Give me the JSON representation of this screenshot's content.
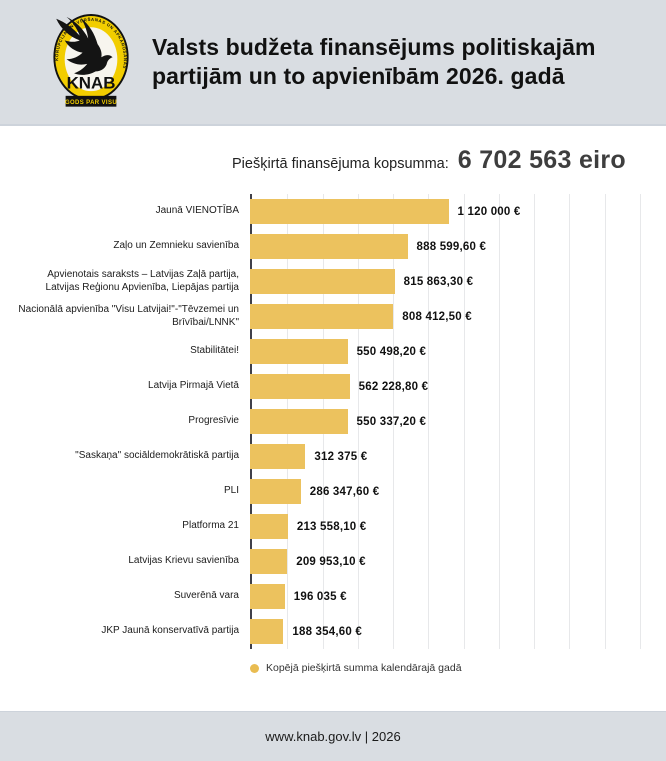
{
  "header": {
    "logo": {
      "org": "KNAB",
      "ring_text": "KORUPCIJAS NOVĒRŠANAS UN APKAROŠANAS BIROJS",
      "motto": "GODS PAR VISU"
    },
    "title": "Valsts budžeta finansējums politiskajām\npartijām un to apvienībām 2026. gadā"
  },
  "summary": {
    "label": "Piešķirtā finansējuma kopsumma:",
    "value": "6 702 563 eiro"
  },
  "chart_data": {
    "type": "bar",
    "orientation": "horizontal",
    "title": "Valsts budžeta finansējums politiskajām partijām un to apvienībām 2026. gadā",
    "categories": [
      "Jaunā VIENOTĪBA",
      "Zaļo un Zemnieku savienība",
      "Apvienotais saraksts – Latvijas Zaļā partija, Latvijas Reģionu Apvienība, Liepājas partija",
      "Nacionālā apvienība \"Visu Latvijai!\"-\"Tēvzemei un Brīvībai/LNNK\"",
      "Stabilitātei!",
      "Latvija Pirmajā Vietā",
      "Progresīvie",
      "\"Saskaņa\" sociāldemokrātiskā partija",
      "PLI",
      "Platforma 21",
      "Latvijas Krievu savienība",
      "Suverēnā vara",
      "JKP Jaunā konservatīvā partija"
    ],
    "values": [
      1120000,
      888599.6,
      815863.3,
      808412.5,
      550498.2,
      562228.8,
      550337.2,
      312375,
      286347.6,
      213558.1,
      209953.1,
      196035,
      188354.6
    ],
    "value_labels": [
      "1 120 000 €",
      "888 599,60 €",
      "815 863,30 €",
      "808 412,50 €",
      "550 498,20 €",
      "562 228,80 €",
      "550 337,20 €",
      "312 375 €",
      "286 347,60 €",
      "213 558,10 €",
      "209 953,10 €",
      "196 035 €",
      "188 354,60 €"
    ],
    "xlabel": "",
    "ylabel": "",
    "xlim": [
      0,
      2200000
    ],
    "grid_step": 200000,
    "grid": true,
    "bar_color": "#ecc25e",
    "legend": [
      {
        "label": "Kopējā piešķirtā summa kalendārajā gadā",
        "color": "#e9bc51"
      }
    ],
    "legend_position": "bottom-left"
  },
  "footer": {
    "text": "www.knab.gov.lv | 2026"
  },
  "colors": {
    "accent_yellow": "#ecc25e",
    "logo_yellow": "#f2cd00",
    "header_bg": "#d9dde2",
    "footer_bg": "#d9dde2",
    "grid_line": "#e7e8ea",
    "axis_line": "#40404a",
    "summary_value_color": "#3e3e3e"
  }
}
